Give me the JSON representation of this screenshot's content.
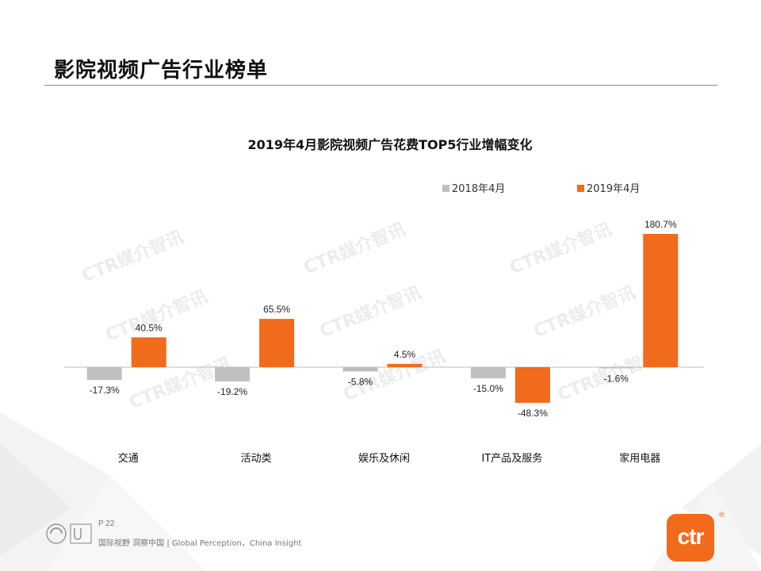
{
  "page_title": "影院视频广告行业榜单",
  "watermark": "CTR媒介智讯",
  "footer": {
    "page_number": "P 22",
    "slogan": "国际视野 洞察中国 | Global Perception，China Insight"
  },
  "brand_logo_text": "ctr",
  "brand_logo_mark": "®",
  "colors": {
    "series_2018": "#bfbfbf",
    "series_2019": "#f26a1b",
    "accent": "#f26a1b"
  },
  "chart_data": {
    "type": "bar",
    "title": "2019年4月影院视频广告花费TOP5行业增幅变化",
    "categories": [
      "交通",
      "活动类",
      "娱乐及休闲",
      "IT产品及服务",
      "家用电器"
    ],
    "series": [
      {
        "name": "2018年4月",
        "values": [
          -17.3,
          -19.2,
          -5.8,
          -15.0,
          -1.6
        ],
        "labels": [
          "-17.3%",
          "-19.2%",
          "-5.8%",
          "-15.0%",
          "-1.6%"
        ]
      },
      {
        "name": "2019年4月",
        "values": [
          40.5,
          65.5,
          4.5,
          -48.3,
          180.7
        ],
        "labels": [
          "40.5%",
          "65.5%",
          "4.5%",
          "-48.3%",
          "180.7%"
        ]
      }
    ],
    "legend_position": "top-right",
    "grid": false,
    "ylim": [
      -48.3,
      180.7
    ]
  }
}
